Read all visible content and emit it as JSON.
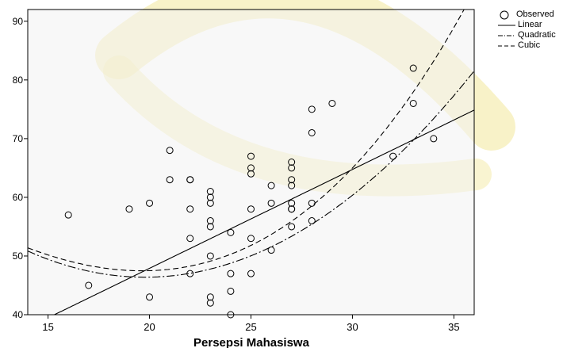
{
  "chart_data": {
    "type": "scatter",
    "xlabel": "Persepsi Mahasiswa",
    "ylabel": "",
    "xlim": [
      14,
      36
    ],
    "ylim": [
      40,
      92
    ],
    "xticks": [
      15,
      20,
      25,
      30,
      35
    ],
    "yticks": [
      40,
      50,
      60,
      70,
      80,
      90
    ],
    "grid": false,
    "legend_position": "top-right-outside",
    "legend": [
      "Observed",
      "Linear",
      "Quadratic",
      "Cubic"
    ],
    "series": [
      {
        "name": "Observed",
        "points": [
          [
            16,
            57
          ],
          [
            17,
            45
          ],
          [
            19,
            58
          ],
          [
            20,
            59
          ],
          [
            20,
            43
          ],
          [
            21,
            68
          ],
          [
            21,
            63
          ],
          [
            22,
            63
          ],
          [
            22,
            63
          ],
          [
            22,
            58
          ],
          [
            22,
            53
          ],
          [
            22,
            47
          ],
          [
            23,
            61
          ],
          [
            23,
            60
          ],
          [
            23,
            59
          ],
          [
            23,
            56
          ],
          [
            23,
            55
          ],
          [
            23,
            50
          ],
          [
            23,
            43
          ],
          [
            23,
            42
          ],
          [
            24,
            54
          ],
          [
            24,
            47
          ],
          [
            24,
            44
          ],
          [
            24,
            40
          ],
          [
            25,
            67
          ],
          [
            25,
            65
          ],
          [
            25,
            64
          ],
          [
            25,
            58
          ],
          [
            25,
            53
          ],
          [
            25,
            47
          ],
          [
            26,
            62
          ],
          [
            26,
            59
          ],
          [
            26,
            51
          ],
          [
            27,
            66
          ],
          [
            27,
            65
          ],
          [
            27,
            63
          ],
          [
            27,
            62
          ],
          [
            27,
            59
          ],
          [
            27,
            58
          ],
          [
            27,
            58
          ],
          [
            27,
            55
          ],
          [
            28,
            75
          ],
          [
            28,
            71
          ],
          [
            28,
            59
          ],
          [
            28,
            56
          ],
          [
            29,
            76
          ],
          [
            32,
            67
          ],
          [
            33,
            82
          ],
          [
            33,
            76
          ],
          [
            34,
            70
          ]
        ]
      },
      {
        "name": "Linear",
        "type": "line",
        "fit": "linear",
        "coefficients": [
          14.2,
          1.685
        ]
      },
      {
        "name": "Quadratic",
        "type": "line",
        "fit": "quadratic",
        "coefficients": [
          98.6,
          -5.28,
          0.1335
        ]
      },
      {
        "name": "Cubic",
        "type": "line",
        "fit": "cubic",
        "coefficients": [
          81.5,
          -2.5,
          -0.01,
          0.0025
        ]
      }
    ]
  },
  "colors": {
    "background": "#f2f2f2",
    "axis": "#000000",
    "marker": "#000000",
    "watermark": "#f2e79a"
  }
}
